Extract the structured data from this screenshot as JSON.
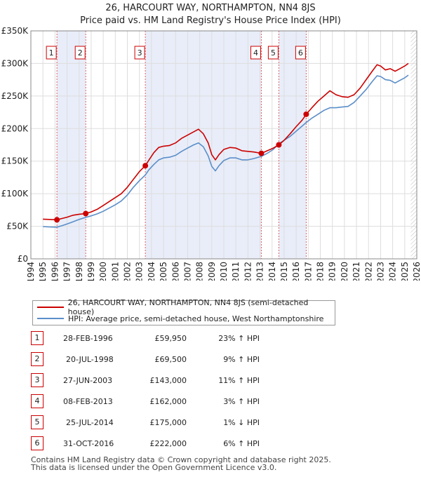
{
  "title": {
    "line1": "26, HARCOURT WAY, NORTHAMPTON, NN4 8JS",
    "line2": "Price paid vs. HM Land Registry's House Price Index (HPI)"
  },
  "chart_data": {
    "type": "line",
    "x_range": [
      1994,
      2026
    ],
    "ylim": [
      0,
      350000
    ],
    "y_ticks": [
      {
        "value": 0,
        "label": "£0"
      },
      {
        "value": 50000,
        "label": "£50K"
      },
      {
        "value": 100000,
        "label": "£100K"
      },
      {
        "value": 150000,
        "label": "£150K"
      },
      {
        "value": 200000,
        "label": "£200K"
      },
      {
        "value": 250000,
        "label": "£250K"
      },
      {
        "value": 300000,
        "label": "£300K"
      },
      {
        "value": 350000,
        "label": "£350K"
      }
    ],
    "x_ticks": [
      "1994",
      "1995",
      "1996",
      "1997",
      "1998",
      "1999",
      "2000",
      "2001",
      "2002",
      "2003",
      "2004",
      "2005",
      "2006",
      "2007",
      "2008",
      "2009",
      "2010",
      "2011",
      "2012",
      "2013",
      "2014",
      "2015",
      "2016",
      "2017",
      "2018",
      "2019",
      "2020",
      "2021",
      "2022",
      "2023",
      "2024",
      "2025",
      "2026"
    ],
    "data_span": [
      1995.0,
      2025.5
    ],
    "series": [
      {
        "name": "26, HARCOURT WAY, NORTHAMPTON, NN4 8JS (semi-detached house)",
        "color": "#cc0000",
        "points": [
          [
            1995.0,
            61000
          ],
          [
            1995.5,
            60500
          ],
          [
            1996.16,
            59950
          ],
          [
            1996.6,
            62000
          ],
          [
            1997.0,
            64000
          ],
          [
            1997.5,
            67000
          ],
          [
            1998.0,
            68500
          ],
          [
            1998.55,
            69500
          ],
          [
            1999.0,
            72000
          ],
          [
            1999.5,
            76000
          ],
          [
            2000.0,
            82000
          ],
          [
            2000.5,
            88000
          ],
          [
            2001.0,
            94000
          ],
          [
            2001.5,
            100000
          ],
          [
            2002.0,
            110000
          ],
          [
            2002.5,
            122000
          ],
          [
            2003.0,
            134000
          ],
          [
            2003.49,
            143000
          ],
          [
            2003.8,
            152000
          ],
          [
            2004.2,
            163000
          ],
          [
            2004.6,
            171000
          ],
          [
            2005.0,
            173000
          ],
          [
            2005.5,
            174000
          ],
          [
            2006.0,
            178000
          ],
          [
            2006.5,
            185000
          ],
          [
            2007.0,
            190000
          ],
          [
            2007.5,
            195000
          ],
          [
            2007.9,
            199000
          ],
          [
            2008.3,
            192000
          ],
          [
            2008.7,
            178000
          ],
          [
            2009.0,
            160000
          ],
          [
            2009.3,
            152000
          ],
          [
            2009.6,
            160000
          ],
          [
            2010.0,
            168000
          ],
          [
            2010.5,
            171000
          ],
          [
            2011.0,
            170000
          ],
          [
            2011.5,
            166000
          ],
          [
            2012.0,
            165000
          ],
          [
            2012.5,
            164000
          ],
          [
            2013.11,
            162000
          ],
          [
            2013.6,
            166000
          ],
          [
            2014.1,
            170000
          ],
          [
            2014.56,
            175000
          ],
          [
            2015.0,
            182000
          ],
          [
            2015.5,
            192000
          ],
          [
            2016.0,
            203000
          ],
          [
            2016.5,
            213000
          ],
          [
            2016.83,
            222000
          ],
          [
            2017.3,
            232000
          ],
          [
            2017.8,
            242000
          ],
          [
            2018.3,
            250000
          ],
          [
            2018.8,
            258000
          ],
          [
            2019.3,
            252000
          ],
          [
            2019.8,
            249000
          ],
          [
            2020.3,
            248000
          ],
          [
            2020.8,
            252000
          ],
          [
            2021.3,
            262000
          ],
          [
            2021.8,
            275000
          ],
          [
            2022.3,
            288000
          ],
          [
            2022.7,
            298000
          ],
          [
            2023.0,
            296000
          ],
          [
            2023.4,
            290000
          ],
          [
            2023.8,
            292000
          ],
          [
            2024.2,
            288000
          ],
          [
            2024.6,
            292000
          ],
          [
            2025.0,
            296000
          ],
          [
            2025.3,
            300000
          ]
        ]
      },
      {
        "name": "HPI: Average price, semi-detached house, West Northamptonshire",
        "color": "#5b8ec9",
        "points": [
          [
            1995.0,
            49500
          ],
          [
            1995.5,
            49000
          ],
          [
            1996.16,
            48700
          ],
          [
            1996.6,
            51000
          ],
          [
            1997.0,
            53500
          ],
          [
            1997.5,
            57000
          ],
          [
            1998.0,
            60500
          ],
          [
            1998.55,
            63700
          ],
          [
            1999.0,
            66000
          ],
          [
            1999.5,
            69000
          ],
          [
            2000.0,
            73000
          ],
          [
            2000.5,
            78000
          ],
          [
            2001.0,
            83000
          ],
          [
            2001.5,
            89000
          ],
          [
            2002.0,
            98000
          ],
          [
            2002.5,
            110000
          ],
          [
            2003.0,
            120000
          ],
          [
            2003.49,
            128800
          ],
          [
            2003.8,
            137000
          ],
          [
            2004.2,
            145000
          ],
          [
            2004.6,
            152000
          ],
          [
            2005.0,
            155000
          ],
          [
            2005.5,
            156000
          ],
          [
            2006.0,
            159000
          ],
          [
            2006.5,
            165000
          ],
          [
            2007.0,
            170000
          ],
          [
            2007.5,
            175000
          ],
          [
            2007.9,
            178000
          ],
          [
            2008.3,
            172000
          ],
          [
            2008.7,
            158000
          ],
          [
            2009.0,
            142000
          ],
          [
            2009.3,
            135000
          ],
          [
            2009.6,
            143000
          ],
          [
            2010.0,
            151000
          ],
          [
            2010.5,
            155000
          ],
          [
            2011.0,
            155000
          ],
          [
            2011.5,
            152000
          ],
          [
            2012.0,
            152000
          ],
          [
            2012.5,
            154000
          ],
          [
            2013.11,
            157300
          ],
          [
            2013.6,
            162000
          ],
          [
            2014.1,
            168000
          ],
          [
            2014.56,
            176800
          ],
          [
            2015.0,
            182000
          ],
          [
            2015.5,
            188000
          ],
          [
            2016.0,
            196000
          ],
          [
            2016.5,
            204000
          ],
          [
            2016.83,
            209400
          ],
          [
            2017.3,
            216000
          ],
          [
            2017.8,
            222000
          ],
          [
            2018.3,
            228000
          ],
          [
            2018.8,
            232000
          ],
          [
            2019.3,
            232000
          ],
          [
            2019.8,
            233000
          ],
          [
            2020.3,
            234000
          ],
          [
            2020.8,
            240000
          ],
          [
            2021.3,
            250000
          ],
          [
            2021.8,
            260000
          ],
          [
            2022.3,
            272000
          ],
          [
            2022.7,
            281000
          ],
          [
            2023.0,
            280000
          ],
          [
            2023.4,
            275000
          ],
          [
            2023.8,
            274000
          ],
          [
            2024.2,
            270000
          ],
          [
            2024.6,
            274000
          ],
          [
            2025.0,
            278000
          ],
          [
            2025.3,
            282000
          ]
        ]
      }
    ],
    "sales": [
      {
        "n": "1",
        "x": 1996.16,
        "price": 59950
      },
      {
        "n": "2",
        "x": 1998.55,
        "price": 69500
      },
      {
        "n": "3",
        "x": 2003.49,
        "price": 143000
      },
      {
        "n": "4",
        "x": 2013.11,
        "price": 162000
      },
      {
        "n": "5",
        "x": 2014.56,
        "price": 175000
      },
      {
        "n": "6",
        "x": 2016.83,
        "price": 222000
      }
    ],
    "hatched_after": 2025.5
  },
  "legend": {
    "property_label": "26, HARCOURT WAY, NORTHAMPTON, NN4 8JS (semi-detached house)",
    "hpi_label": "HPI: Average price, semi-detached house, West Northamptonshire",
    "property_color": "#cc0000",
    "hpi_color": "#5b8ec9"
  },
  "sales_table": [
    {
      "n": "1",
      "date": "28-FEB-1996",
      "price": "£59,950",
      "hpi": "23% ↑ HPI"
    },
    {
      "n": "2",
      "date": "20-JUL-1998",
      "price": "£69,500",
      "hpi": "9% ↑ HPI"
    },
    {
      "n": "3",
      "date": "27-JUN-2003",
      "price": "£143,000",
      "hpi": "11% ↑ HPI"
    },
    {
      "n": "4",
      "date": "08-FEB-2013",
      "price": "£162,000",
      "hpi": "3% ↑ HPI"
    },
    {
      "n": "5",
      "date": "25-JUL-2014",
      "price": "£175,000",
      "hpi": "1% ↓ HPI"
    },
    {
      "n": "6",
      "date": "31-OCT-2016",
      "price": "£222,000",
      "hpi": "6% ↑ HPI"
    }
  ],
  "footer": {
    "line1": "Contains HM Land Registry data © Crown copyright and database right 2025.",
    "line2": "This data is licensed under the Open Government Licence v3.0."
  }
}
